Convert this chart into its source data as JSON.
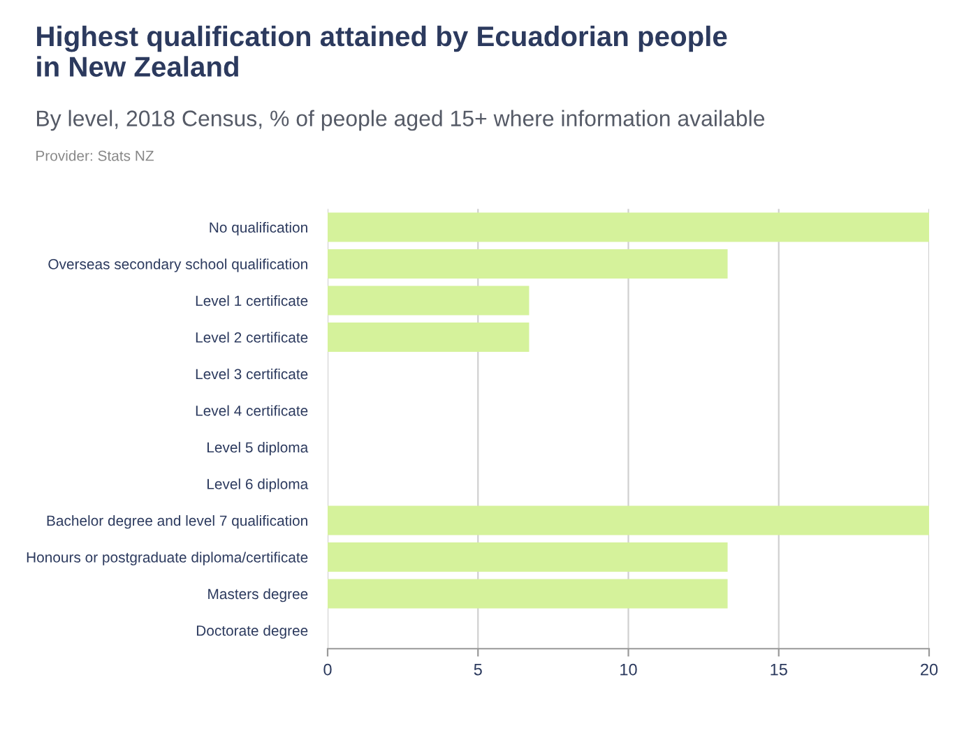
{
  "chart_data": {
    "type": "bar",
    "orientation": "horizontal",
    "title": "Highest qualification attained by Ecuadorian people\nin New Zealand",
    "subtitle": "By level, 2018 Census, % of people aged 15+ where information available",
    "annotations": [
      "Provider: Stats NZ"
    ],
    "categories": [
      "No qualification",
      "Overseas secondary school qualification",
      "Level 1 certificate",
      "Level 2 certificate",
      "Level 3 certificate",
      "Level 4 certificate",
      "Level 5 diploma",
      "Level 6 diploma",
      "Bachelor degree and level 7 qualification",
      "Honours or postgraduate diploma/certificate",
      "Masters degree",
      "Doctorate degree"
    ],
    "values": [
      20,
      13.3,
      6.7,
      6.7,
      0,
      0,
      0,
      0,
      20,
      13.3,
      13.3,
      0
    ],
    "color": "#d5f29b",
    "xlim": [
      0,
      20
    ],
    "xticks": [
      0,
      5,
      10,
      15,
      20
    ],
    "grid": "x"
  }
}
